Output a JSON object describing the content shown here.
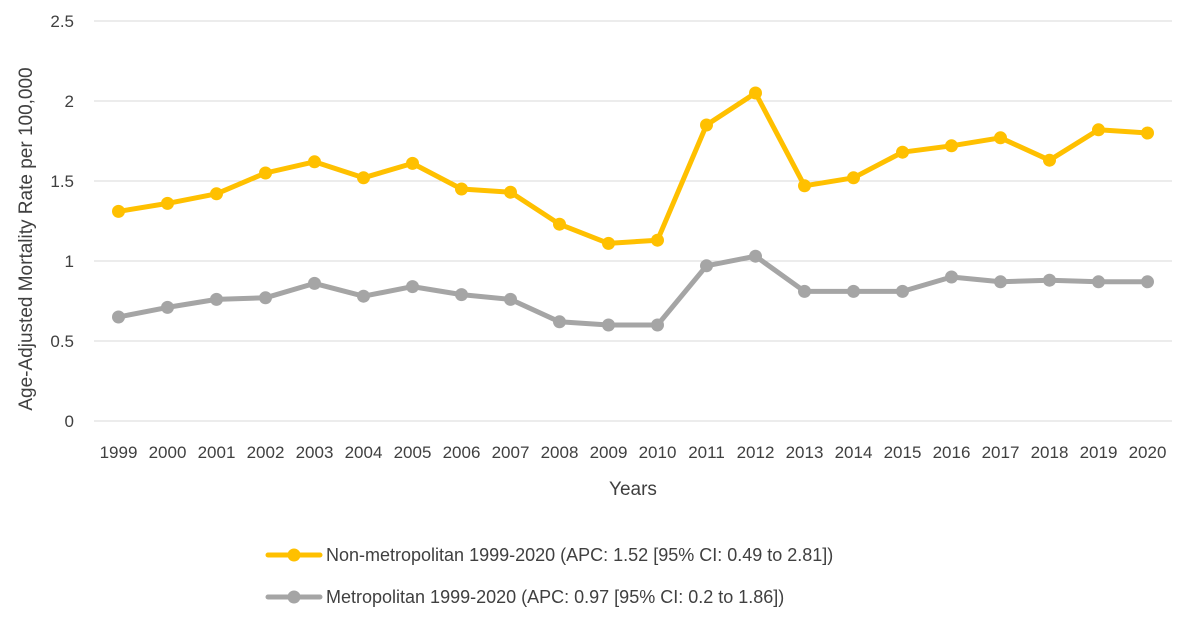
{
  "chart_data": {
    "type": "line",
    "title": "",
    "xlabel": "Years",
    "ylabel": "Age-Adjusted Mortality Rate per 100,000",
    "ylim": [
      0,
      2.5
    ],
    "yticks": [
      "0",
      "0.5",
      "1",
      "1.5",
      "2",
      "2.5"
    ],
    "grid": true,
    "legend_position": "bottom",
    "categories": [
      "1999",
      "2000",
      "2001",
      "2002",
      "2003",
      "2004",
      "2005",
      "2006",
      "2007",
      "2008",
      "2009",
      "2010",
      "2011",
      "2012",
      "2013",
      "2014",
      "2015",
      "2016",
      "2017",
      "2018",
      "2019",
      "2020"
    ],
    "series": [
      {
        "name": "Non-metropolitan 1999-2020 (APC: 1.52 [95% CI: 0.49 to 2.81])",
        "color": "#FFC000",
        "values": [
          1.31,
          1.36,
          1.42,
          1.55,
          1.62,
          1.52,
          1.61,
          1.45,
          1.43,
          1.23,
          1.11,
          1.13,
          1.85,
          2.05,
          1.47,
          1.52,
          1.68,
          1.72,
          1.77,
          1.63,
          1.82,
          1.8
        ]
      },
      {
        "name": "Metropolitan 1999-2020 (APC: 0.97 [95% CI: 0.2 to 1.86])",
        "color": "#A5A5A5",
        "values": [
          0.65,
          0.71,
          0.76,
          0.77,
          0.86,
          0.78,
          0.84,
          0.79,
          0.76,
          0.62,
          0.6,
          0.6,
          0.97,
          1.03,
          0.81,
          0.81,
          0.81,
          0.9,
          0.87,
          0.88,
          0.87,
          0.87
        ]
      }
    ]
  }
}
